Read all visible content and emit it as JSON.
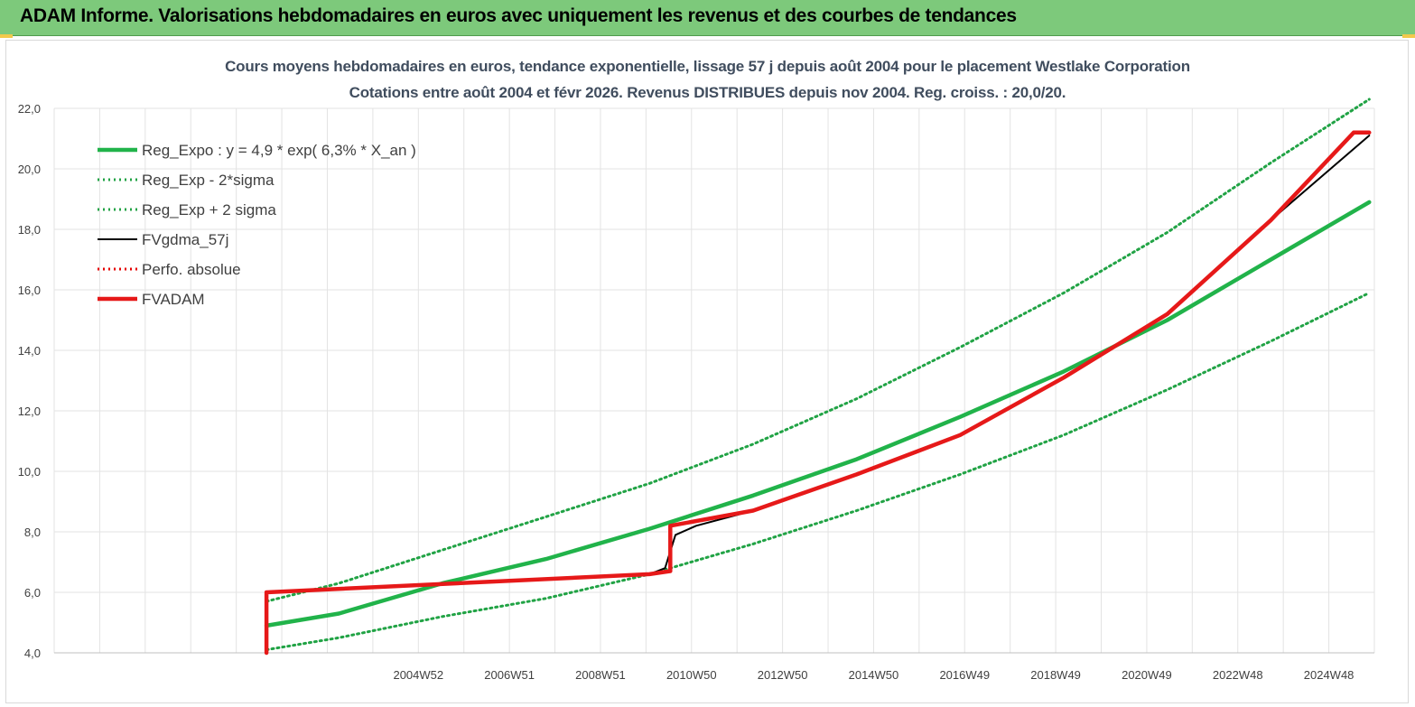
{
  "header": {
    "title": "ADAM Informe. Valorisations hebdomadaires en euros avec uniquement les revenus et des courbes de tendances"
  },
  "colors": {
    "banner": "#7dc97b",
    "trend": "#21b34a",
    "band": "#21a345",
    "gdma": "#000000",
    "perfo": "#e60000",
    "fvadam": "#e61919"
  },
  "chart_data": {
    "type": "line",
    "title": "Cours moyens hebdomadaires en euros, tendance exponentielle, lissage 57 j depuis août 2004 pour le placement Westlake Corporation",
    "subtitle": "Cotations entre août 2004 et févr 2026. Revenus DISTRIBUES depuis nov 2004. Reg. croiss. : 20,0/20.",
    "ylim": [
      4.0,
      22.0
    ],
    "y_ticks": [
      "4,0",
      "6,0",
      "8,0",
      "10,0",
      "12,0",
      "14,0",
      "16,0",
      "18,0",
      "20,0",
      "22,0"
    ],
    "x_tick_labels": [
      "2004W52",
      "2006W51",
      "2008W51",
      "2010W50",
      "2012W50",
      "2014W50",
      "2016W49",
      "2018W49",
      "2020W49",
      "2022W48",
      "2024W48"
    ],
    "legend_position": "top-left",
    "series": [
      {
        "name": "Reg_Expo : y = 4,9 * exp( 6,3% *  X_an )",
        "style": "solid-thick",
        "color": "#21b34a",
        "x": [
          2004.6,
          2006.0,
          2008.0,
          2010.0,
          2012.0,
          2014.0,
          2016.0,
          2018.0,
          2020.0,
          2022.0,
          2024.0,
          2025.9
        ],
        "values": [
          4.9,
          5.3,
          6.3,
          7.1,
          8.1,
          9.2,
          10.4,
          11.8,
          13.3,
          15.0,
          17.0,
          18.9
        ]
      },
      {
        "name": "Reg_Exp - 2*sigma",
        "style": "dotted",
        "color": "#21a345",
        "x": [
          2004.6,
          2006.0,
          2008.0,
          2010.0,
          2012.0,
          2014.0,
          2016.0,
          2018.0,
          2020.0,
          2022.0,
          2024.0,
          2025.9
        ],
        "values": [
          4.1,
          4.5,
          5.2,
          5.8,
          6.6,
          7.6,
          8.7,
          9.9,
          11.2,
          12.7,
          14.3,
          15.9
        ]
      },
      {
        "name": "Reg_Exp + 2 sigma",
        "style": "dotted",
        "color": "#21a345",
        "x": [
          2004.6,
          2006.0,
          2008.0,
          2010.0,
          2012.0,
          2014.0,
          2016.0,
          2018.0,
          2020.0,
          2022.0,
          2024.0,
          2025.9
        ],
        "values": [
          5.7,
          6.3,
          7.4,
          8.5,
          9.6,
          10.9,
          12.4,
          14.1,
          15.9,
          17.9,
          20.2,
          22.3
        ]
      },
      {
        "name": "FVgdma_57j",
        "style": "solid",
        "color": "#000000",
        "x": [
          2004.6,
          2004.6,
          2012.0,
          2012.3,
          2012.5,
          2012.9,
          2014.0,
          2016.0,
          2018.0,
          2020.0,
          2022.0,
          2024.0,
          2025.9
        ],
        "values": [
          4.0,
          6.0,
          6.6,
          6.8,
          7.9,
          8.2,
          8.7,
          9.9,
          11.2,
          13.1,
          15.2,
          18.3,
          21.1
        ]
      },
      {
        "name": "Perfo. absolue",
        "style": "dotted",
        "color": "#e60000",
        "x": [],
        "values": []
      },
      {
        "name": "FVADAM",
        "style": "solid-thick",
        "color": "#e61919",
        "x": [
          2004.6,
          2004.6,
          2012.0,
          2012.4,
          2012.4,
          2014.0,
          2016.0,
          2018.0,
          2020.0,
          2022.0,
          2024.0,
          2025.6,
          2025.9
        ],
        "values": [
          4.0,
          6.0,
          6.6,
          6.7,
          8.2,
          8.7,
          9.9,
          11.2,
          13.1,
          15.2,
          18.3,
          21.2,
          21.2
        ]
      }
    ]
  }
}
